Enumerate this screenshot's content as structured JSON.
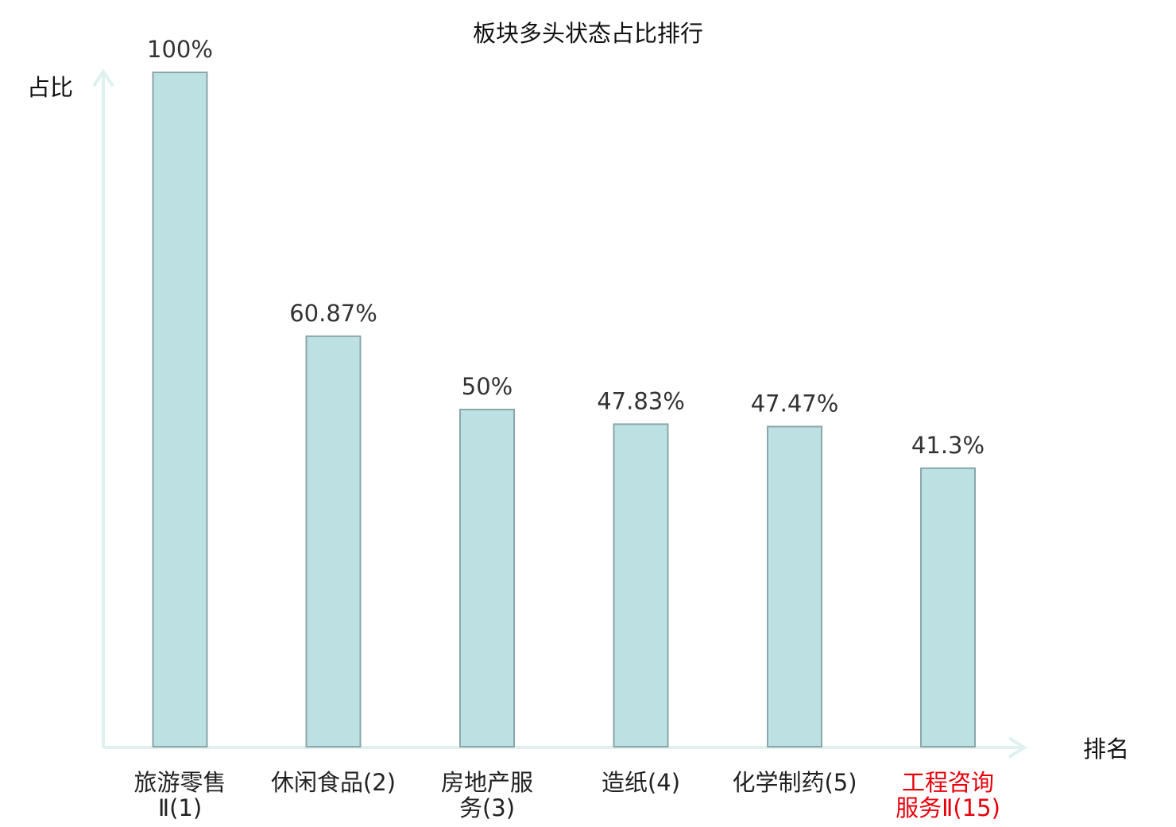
{
  "chart_data": {
    "type": "bar",
    "title": "板块多头状态占比排行",
    "ylabel": "占比",
    "xlabel": "排名",
    "ylim": [
      0,
      100
    ],
    "grid": false,
    "categories": [
      {
        "lines": [
          "旅游零售",
          "Ⅱ(1)"
        ],
        "highlight": false
      },
      {
        "lines": [
          "休闲食品(2)"
        ],
        "highlight": false
      },
      {
        "lines": [
          "房地产服",
          "务(3)"
        ],
        "highlight": false
      },
      {
        "lines": [
          "造纸(4)"
        ],
        "highlight": false
      },
      {
        "lines": [
          "化学制药(5)"
        ],
        "highlight": false
      },
      {
        "lines": [
          "工程咨询",
          "服务Ⅱ(15)"
        ],
        "highlight": true
      }
    ],
    "values": [
      100,
      60.87,
      50,
      47.83,
      47.47,
      41.3
    ],
    "value_labels": [
      "100%",
      "60.87%",
      "50%",
      "47.83%",
      "47.47%",
      "41.3%"
    ],
    "colors": {
      "bar_fill": "#bde0e3",
      "bar_stroke": "#8aa6a9",
      "axis": "#dff1ee",
      "label": "#222222",
      "highlight": "#e8000b"
    }
  }
}
